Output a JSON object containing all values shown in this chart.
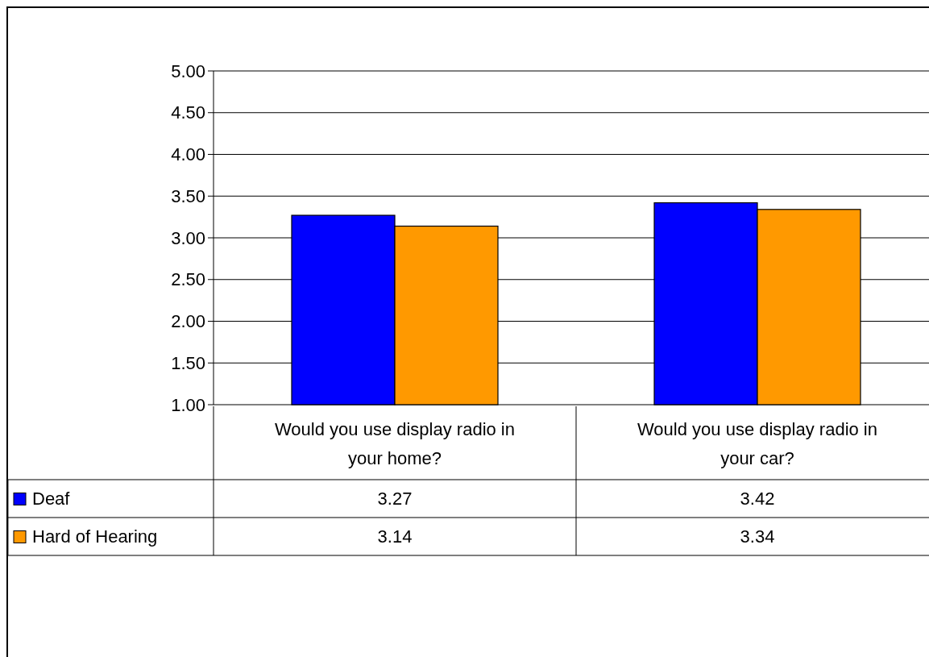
{
  "chart_data": {
    "type": "bar",
    "categories": [
      "Would you use display radio in your home?",
      "Would you use display radio in your car?"
    ],
    "series": [
      {
        "name": "Deaf",
        "color": "#0000ff",
        "values": [
          3.27,
          3.42
        ]
      },
      {
        "name": "Hard of Hearing",
        "color": "#ff9900",
        "values": [
          3.14,
          3.34
        ]
      }
    ],
    "ylim": [
      1,
      5
    ],
    "yticks": [
      {
        "value": 1,
        "label": "1.00"
      },
      {
        "value": 1.5,
        "label": "1.50"
      },
      {
        "value": 2,
        "label": "2.00"
      },
      {
        "value": 2.5,
        "label": "2.50"
      },
      {
        "value": 3,
        "label": "3.00"
      },
      {
        "value": 3.5,
        "label": "3.50"
      },
      {
        "value": 4,
        "label": "4.00"
      },
      {
        "value": 4.5,
        "label": "4.50"
      },
      {
        "value": 5,
        "label": "5.00"
      }
    ],
    "grid": "y",
    "legend": "bottom left",
    "data_labels": true
  }
}
